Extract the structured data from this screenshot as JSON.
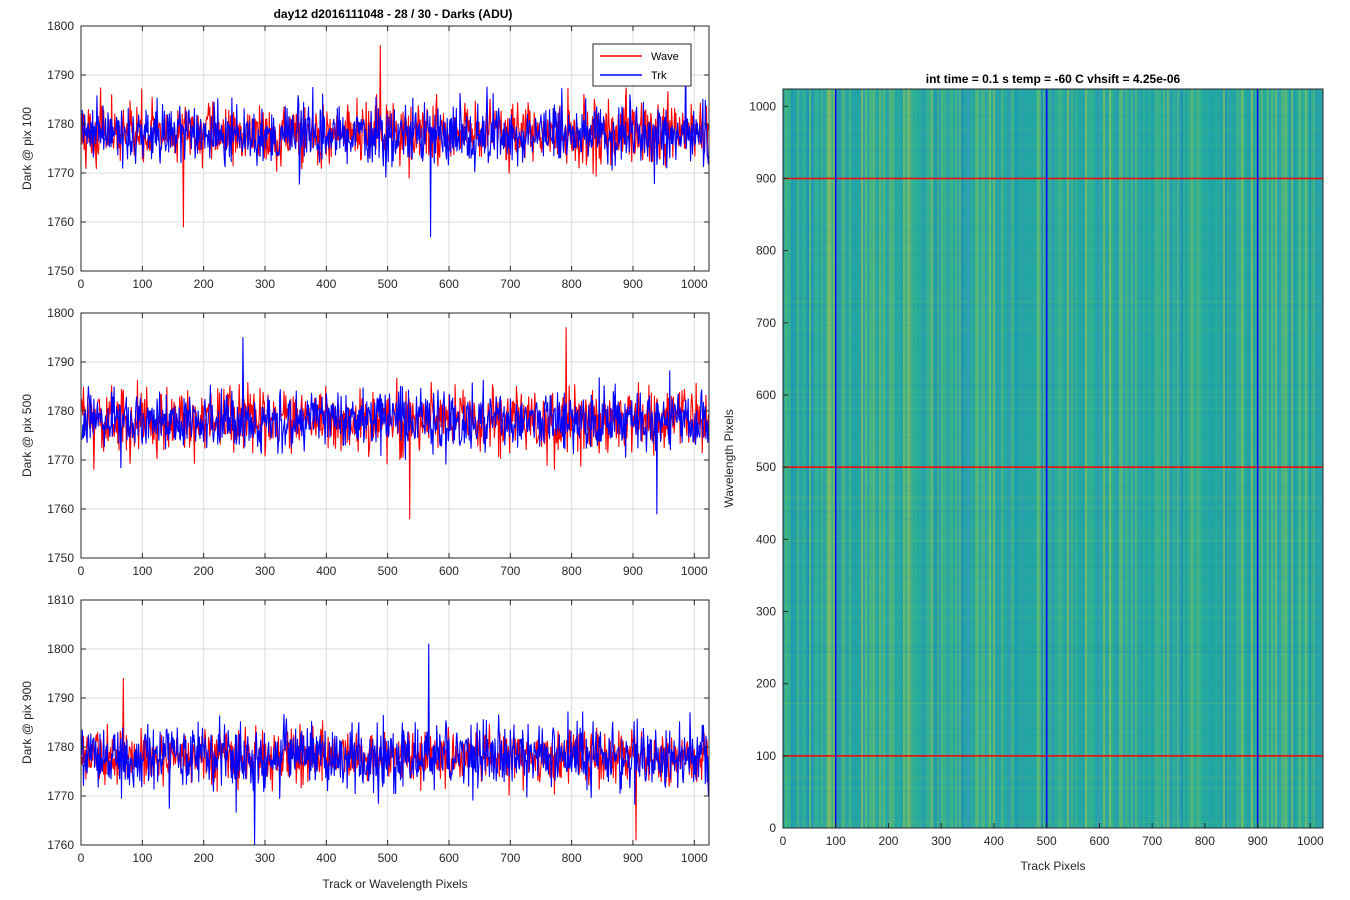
{
  "figure_title": "day12 d2016111048 - 28 / 30 - Darks (ADU)",
  "heatmap_title": "int time = 0.1 s   temp = -60 C   vhsift = 4.25e-06",
  "legend": {
    "labels": [
      "Wave",
      "Trk"
    ],
    "colors": [
      "#ff0000",
      "#0000ff"
    ],
    "placement": "top-right"
  },
  "colors": {
    "wave": "#ff0000",
    "trk": "#0000ff",
    "grid": "#dcdcdc",
    "axis": "#262626"
  },
  "chart_data": [
    {
      "type": "line",
      "id": "pix100",
      "title": "day12 d2016111048 - 28 / 30 - Darks (ADU)",
      "ylabel": "Dark @ pix 100",
      "xlabel": "",
      "xlim": [
        0,
        1024
      ],
      "ylim": [
        1750,
        1800
      ],
      "xticks": [
        0,
        100,
        200,
        300,
        400,
        500,
        600,
        700,
        800,
        900,
        1000
      ],
      "yticks": [
        1750,
        1760,
        1770,
        1780,
        1790,
        1800
      ],
      "grid": true,
      "series": [
        {
          "name": "Wave",
          "mean": 1778,
          "min": 1759,
          "max": 1796,
          "n": 1024
        },
        {
          "name": "Trk",
          "mean": 1778,
          "min": 1757,
          "max": 1795,
          "n": 1024
        }
      ]
    },
    {
      "type": "line",
      "id": "pix500",
      "title": "",
      "ylabel": "Dark @ pix 500",
      "xlabel": "",
      "xlim": [
        0,
        1024
      ],
      "ylim": [
        1750,
        1800
      ],
      "xticks": [
        0,
        100,
        200,
        300,
        400,
        500,
        600,
        700,
        800,
        900,
        1000
      ],
      "yticks": [
        1750,
        1760,
        1770,
        1780,
        1790,
        1800
      ],
      "grid": true,
      "series": [
        {
          "name": "Wave",
          "mean": 1778,
          "min": 1758,
          "max": 1797,
          "n": 1024
        },
        {
          "name": "Trk",
          "mean": 1778,
          "min": 1759,
          "max": 1795,
          "n": 1024
        }
      ]
    },
    {
      "type": "line",
      "id": "pix900",
      "title": "",
      "ylabel": "Dark @ pix 900",
      "xlabel": "Track or Wavelength Pixels",
      "xlim": [
        0,
        1024
      ],
      "ylim": [
        1760,
        1810
      ],
      "xticks": [
        0,
        100,
        200,
        300,
        400,
        500,
        600,
        700,
        800,
        900,
        1000
      ],
      "yticks": [
        1760,
        1770,
        1780,
        1790,
        1800,
        1810
      ],
      "grid": true,
      "series": [
        {
          "name": "Wave",
          "mean": 1778,
          "min": 1761,
          "max": 1794,
          "n": 1024
        },
        {
          "name": "Trk",
          "mean": 1778,
          "min": 1760,
          "max": 1801,
          "n": 1024
        }
      ]
    },
    {
      "type": "heatmap",
      "id": "dark-image",
      "title": "int time = 0.1 s   temp = -60 C   vhsift = 4.25e-06",
      "xlabel": "Track Pixels",
      "ylabel": "Wavelength Pixels",
      "xlim": [
        0,
        1024
      ],
      "ylim": [
        0,
        1024
      ],
      "xticks": [
        0,
        100,
        200,
        300,
        400,
        500,
        600,
        700,
        800,
        900,
        1000
      ],
      "yticks": [
        0,
        100,
        200,
        300,
        400,
        500,
        600,
        700,
        800,
        900,
        1000
      ],
      "colormap": "parula",
      "vertical_lines": {
        "positions": [
          100,
          500,
          900
        ],
        "color": "#0000ff"
      },
      "horizontal_lines": {
        "positions": [
          100,
          500,
          900
        ],
        "color": "#ff0000"
      }
    }
  ]
}
